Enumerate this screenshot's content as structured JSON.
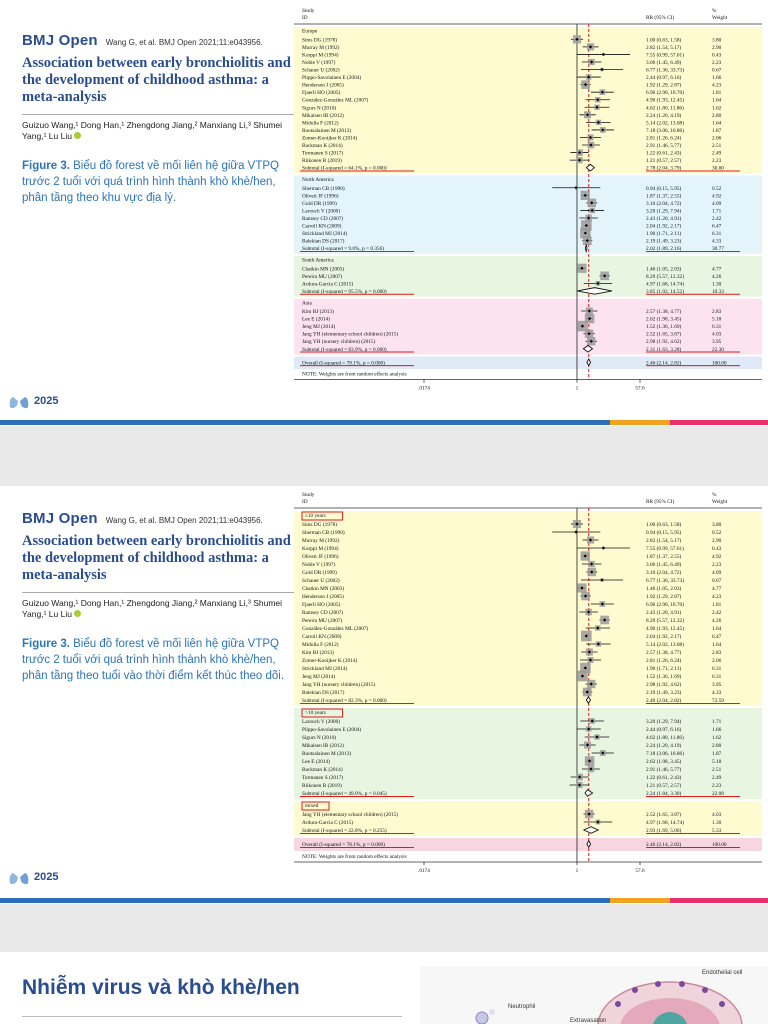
{
  "colors": {
    "brand": "#2a4d8f",
    "caption": "#2b74b9",
    "europe": "#fffbd0",
    "north_america": "#e3f5fb",
    "south_america": "#e8f6e1",
    "asia": "#fde3f0",
    "overall": "#dfe9f7",
    "mixed": "#fffbd0",
    "le10": "#fffbd0",
    "gt10": "#e8f6e1",
    "overall2": "#f8d6df",
    "red": "#d91c1c"
  },
  "slide1": {
    "journal": "BMJ Open",
    "citation": "Wang G, et al. BMJ Open 2021;11:e043956.",
    "paper_title": "Association between early bronchiolitis and the development of childhood asthma: a meta-analysis",
    "authors": "Guizuo Wang,¹ Dong Han,¹ Zhengdong Jiang,² Manxiang Li,³ Shumei Yang,¹ Lu Liu",
    "figure_label": "Figure 3.",
    "figure_caption": "Biểu đồ forest về mối liên hệ giữa VTPQ trước 2 tuổi với quá trình hình thành khò khè/hen, phân tầng theo khu vực địa lý.",
    "logo_year": "2025"
  },
  "slide2": {
    "journal": "BMJ Open",
    "citation": "Wang G, et al. BMJ Open 2021;11:e043956.",
    "paper_title": "Association between early bronchiolitis and the development of childhood asthma: a meta-analysis",
    "authors": "Guizuo Wang,¹ Dong Han,¹ Zhengdong Jiang,² Manxiang Li,³ Shumei Yang,¹ Lu Liu",
    "figure_label": "Figure 3.",
    "figure_caption": "Biểu đồ forest về mối liên hệ giữa VTPQ trước 2 tuổi với quá trình hình thành khò khè/hen, phân tầng theo tuổi vào thời điểm kết thúc theo dõi.",
    "logo_year": "2025"
  },
  "slide3": {
    "heading": "Nhiễm virus và khò khè/hen",
    "label_endothelial": "Endothelial cell",
    "label_neutrophil": "Neutrophil",
    "label_extravasation": "Extravasation"
  },
  "chart_data": [
    {
      "type": "forest",
      "header": {
        "study": "Study",
        "id": "ID",
        "rr": "RR (95% CI)",
        "pct": "%",
        "weight": "Weight"
      },
      "xaxis_ticks": [
        ".0174",
        "1",
        "57.6"
      ],
      "x_range": [
        0.0174,
        57.6
      ],
      "note": "NOTE: Weights are from random effects analysis",
      "groups": [
        {
          "name": "Europe",
          "rows": [
            {
              "study": "Sims DG (1978)",
              "rr": 1.0,
              "lo": 0.63,
              "hi": 1.58,
              "ci": "1.00 (0.63, 1.58)",
              "w": "3.80"
            },
            {
              "study": "Murray M (1992)",
              "rr": 2.82,
              "lo": 1.54,
              "hi": 5.17,
              "ci": "2.82 (1.54, 5.17)",
              "w": "2.90"
            },
            {
              "study": "Korppi M (1994)",
              "rr": 7.55,
              "lo": 0.99,
              "hi": 57.61,
              "ci": "7.55 (0.99, 57.61)",
              "w": "0.43"
            },
            {
              "study": "Noble V (1997)",
              "rr": 3.06,
              "lo": 1.45,
              "hi": 6.49,
              "ci": "3.06 (1.45, 6.49)",
              "w": "2.23"
            },
            {
              "study": "Schauer U (2002)",
              "rr": 6.77,
              "lo": 1.36,
              "hi": 33.73,
              "ci": "6.77 (1.36, 33.73)",
              "w": "0.67"
            },
            {
              "study": "Piippo-Savolainen E (2004)",
              "rr": 2.44,
              "lo": 0.97,
              "hi": 6.16,
              "ci": "2.44 (0.97, 6.16)",
              "w": "1.66"
            },
            {
              "study": "Henderson J (2005)",
              "rr": 1.92,
              "lo": 1.29,
              "hi": 2.87,
              "ci": "1.92 (1.29, 2.87)",
              "w": "4.23"
            },
            {
              "study": "Fjaerli HO (2005)",
              "rr": 6.96,
              "lo": 2.9,
              "hi": 16.7,
              "ci": "6.96 (2.90, 16.70)",
              "w": "1.81"
            },
            {
              "study": "González-González ML (2007)",
              "rr": 4.9,
              "lo": 1.93,
              "hi": 12.45,
              "ci": "4.90 (1.93, 12.45)",
              "w": "1.64"
            },
            {
              "study": "Sigurs N (2010)",
              "rr": 4.62,
              "lo": 1.8,
              "hi": 11.86,
              "ci": "4.62 (1.80, 11.86)",
              "w": "1.62"
            },
            {
              "study": "Mikalsen IB (2012)",
              "rr": 2.24,
              "lo": 1.2,
              "hi": 4.19,
              "ci": "2.24 (1.20, 4.19)",
              "w": "2.80"
            },
            {
              "study": "Midulla F (2012)",
              "rr": 5.14,
              "lo": 2.02,
              "hi": 13.08,
              "ci": "5.14 (2.02, 13.08)",
              "w": "1.64"
            },
            {
              "study": "Ruotsalainen M (2013)",
              "rr": 7.18,
              "lo": 3.06,
              "hi": 16.86,
              "ci": "7.18 (3.06, 16.86)",
              "w": "1.87"
            },
            {
              "study": "Zomer-Kooijker K (2014)",
              "rr": 2.81,
              "lo": 1.26,
              "hi": 6.24,
              "ci": "2.81 (1.26, 6.24)",
              "w": "2.06"
            },
            {
              "study": "Backman K (2014)",
              "rr": 2.91,
              "lo": 1.46,
              "hi": 5.77,
              "ci": "2.91 (1.46, 5.77)",
              "w": "2.51"
            },
            {
              "study": "Tormanen S (2017)",
              "rr": 1.22,
              "lo": 0.61,
              "hi": 2.43,
              "ci": "1.22 (0.61, 2.43)",
              "w": "2.49"
            },
            {
              "study": "Riikonen R (2019)",
              "rr": 1.21,
              "lo": 0.57,
              "hi": 2.57,
              "ci": "1.21 (0.57, 2.57)",
              "w": "2.23"
            }
          ],
          "subtotal": {
            "label": "Subtotal  (I-squared = 64.1%, p = 0.000)",
            "rr": 2.78,
            "lo": 2.04,
            "hi": 3.79,
            "ci": "2.78 (2.04, 3.79)",
            "w": "36.60"
          }
        },
        {
          "name": "North America",
          "rows": [
            {
              "study": "Sherman CB (1990)",
              "rr": 0.94,
              "lo": 0.15,
              "hi": 5.95,
              "ci": "0.94 (0.15, 5.95)",
              "w": "0.52"
            },
            {
              "study": "Oliveti JF (1996)",
              "rr": 1.87,
              "lo": 1.37,
              "hi": 2.55,
              "ci": "1.87 (1.37, 2.55)",
              "w": "4.92"
            },
            {
              "study": "Gold DR (1999)",
              "rr": 3.1,
              "lo": 2.04,
              "hi": 4.72,
              "ci": "3.10 (2.04, 4.72)",
              "w": "4.09"
            },
            {
              "study": "Larouch V (2000)",
              "rr": 3.2,
              "lo": 1.29,
              "hi": 7.94,
              "ci": "3.20 (1.29, 7.94)",
              "w": "1.71"
            },
            {
              "study": "Ramsey CD (2007)",
              "rr": 2.43,
              "lo": 1.2,
              "hi": 4.91,
              "ci": "2.43 (1.20, 4.91)",
              "w": "2.42"
            },
            {
              "study": "Carroll KN (2009)",
              "rr": 2.04,
              "lo": 1.92,
              "hi": 2.17,
              "ci": "2.04 (1.92, 2.17)",
              "w": "6.47"
            },
            {
              "study": "Strickland MJ (2014)",
              "rr": 1.9,
              "lo": 1.71,
              "hi": 2.11,
              "ci": "1.90 (1.71, 2.11)",
              "w": "6.31"
            },
            {
              "study": "Balekian DS (2017)",
              "rr": 2.19,
              "lo": 1.49,
              "hi": 3.23,
              "ci": "2.19 (1.49, 3.23)",
              "w": "4.33"
            }
          ],
          "subtotal": {
            "label": "Subtotal  (I-squared = 9.6%, p = 0.356)",
            "rr": 2.02,
            "lo": 1.89,
            "hi": 2.16,
            "ci": "2.02 (1.89, 2.16)",
            "w": "30.77"
          }
        },
        {
          "name": "South America",
          "rows": [
            {
              "study": "Chatkin MN (2003)",
              "rr": 1.46,
              "lo": 1.05,
              "hi": 2.03,
              "ci": "1.46 (1.05, 2.03)",
              "w": "4.77"
            },
            {
              "study": "Pereira MU (2007)",
              "rr": 8.29,
              "lo": 5.57,
              "hi": 12.32,
              "ci": "8.29 (5.57, 12.32)",
              "w": "4.26"
            },
            {
              "study": "Ardura-Garcia C (2015)",
              "rr": 4.97,
              "lo": 1.68,
              "hi": 14.74,
              "ci": "4.97 (1.68, 14.74)",
              "w": "1.30"
            }
          ],
          "subtotal": {
            "label": "Subtotal  (I-squared = 95.5%, p = 0.000)",
            "rr": 3.85,
            "lo": 1.02,
            "hi": 14.52,
            "ci": "3.85 (1.02, 14.52)",
            "w": "10.33"
          }
        },
        {
          "name": "Asia",
          "rows": [
            {
              "study": "Kim BJ (2013)",
              "rr": 2.57,
              "lo": 1.38,
              "hi": 4.77,
              "ci": "2.57 (1.38, 4.77)",
              "w": "2.83"
            },
            {
              "study": "Lee E (2014)",
              "rr": 2.62,
              "lo": 1.98,
              "hi": 3.45,
              "ci": "2.62 (1.98, 3.45)",
              "w": "5.18"
            },
            {
              "study": "Jeng MJ (2014)",
              "rr": 1.52,
              "lo": 1.36,
              "hi": 1.69,
              "ci": "1.52 (1.36, 1.69)",
              "w": "6.31"
            },
            {
              "study": "Jang YH (elementary school children) (2015)",
              "rr": 2.52,
              "lo": 1.65,
              "hi": 3.87,
              "ci": "2.52 (1.65, 3.87)",
              "w": "4.03"
            },
            {
              "study": "Jang YH (nursery children) (2015)",
              "rr": 2.98,
              "lo": 1.92,
              "hi": 4.62,
              "ci": "2.98 (1.92, 4.62)",
              "w": "3.95"
            }
          ],
          "subtotal": {
            "label": "Subtotal  (I-squared = 83.9%, p = 0.000)",
            "rr": 2.31,
            "lo": 1.63,
            "hi": 3.28,
            "ci": "2.31 (1.63, 3.28)",
            "w": "22.30"
          }
        }
      ],
      "overall": {
        "label": "Overall  (I-squared = 78.1%, p = 0.000)",
        "rr": 2.46,
        "lo": 2.14,
        "hi": 2.82,
        "ci": "2.46 (2.14, 2.82)",
        "w": "100.00"
      }
    },
    {
      "type": "forest",
      "header": {
        "study": "Study",
        "id": "ID",
        "rr": "RR (95% CI)",
        "pct": "%",
        "weight": "Weight"
      },
      "xaxis_ticks": [
        ".0174",
        "1",
        "57.6"
      ],
      "x_range": [
        0.0174,
        57.6
      ],
      "note": "NOTE: Weights are from random effects analysis",
      "groups": [
        {
          "name": "≤10 years",
          "rows": [
            {
              "study": "Sims DG (1978)",
              "rr": 1.0,
              "lo": 0.63,
              "hi": 1.58,
              "ci": "1.00 (0.63, 1.58)",
              "w": "3.80"
            },
            {
              "study": "Sherman CB (1990)",
              "rr": 0.94,
              "lo": 0.15,
              "hi": 5.95,
              "ci": "0.94 (0.15, 5.95)",
              "w": "0.52"
            },
            {
              "study": "Murray M (1992)",
              "rr": 2.82,
              "lo": 1.54,
              "hi": 5.17,
              "ci": "2.82 (1.54, 5.17)",
              "w": "2.90"
            },
            {
              "study": "Korppi M (1994)",
              "rr": 7.55,
              "lo": 0.99,
              "hi": 57.61,
              "ci": "7.55 (0.99, 57.61)",
              "w": "0.43"
            },
            {
              "study": "Oliveti JF (1996)",
              "rr": 1.87,
              "lo": 1.37,
              "hi": 2.55,
              "ci": "1.87 (1.37, 2.55)",
              "w": "4.92"
            },
            {
              "study": "Noble V (1997)",
              "rr": 3.06,
              "lo": 1.45,
              "hi": 6.49,
              "ci": "3.06 (1.45, 6.49)",
              "w": "2.23"
            },
            {
              "study": "Gold DR (1999)",
              "rr": 3.1,
              "lo": 2.04,
              "hi": 4.72,
              "ci": "3.10 (2.04, 4.72)",
              "w": "4.09"
            },
            {
              "study": "Schauer U (2002)",
              "rr": 6.77,
              "lo": 1.36,
              "hi": 33.73,
              "ci": "6.77 (1.36, 33.73)",
              "w": "0.67"
            },
            {
              "study": "Chatkin MN (2003)",
              "rr": 1.46,
              "lo": 1.05,
              "hi": 2.03,
              "ci": "1.46 (1.05, 2.03)",
              "w": "4.77"
            },
            {
              "study": "Henderson J (2005)",
              "rr": 1.92,
              "lo": 1.29,
              "hi": 2.87,
              "ci": "1.92 (1.29, 2.87)",
              "w": "4.23"
            },
            {
              "study": "Fjaerli HO (2005)",
              "rr": 6.96,
              "lo": 2.9,
              "hi": 16.7,
              "ci": "6.96 (2.90, 16.70)",
              "w": "1.81"
            },
            {
              "study": "Ramsey CD (2007)",
              "rr": 2.43,
              "lo": 1.2,
              "hi": 4.91,
              "ci": "2.43 (1.20, 4.91)",
              "w": "2.42"
            },
            {
              "study": "Pereira MU (2007)",
              "rr": 8.29,
              "lo": 5.57,
              "hi": 12.32,
              "ci": "8.29 (5.57, 12.32)",
              "w": "4.26"
            },
            {
              "study": "González-González ML (2007)",
              "rr": 4.9,
              "lo": 1.93,
              "hi": 12.45,
              "ci": "4.90 (1.93, 12.45)",
              "w": "1.64"
            },
            {
              "study": "Carroll KN (2009)",
              "rr": 2.04,
              "lo": 1.92,
              "hi": 2.17,
              "ci": "2.04 (1.92, 2.17)",
              "w": "6.47"
            },
            {
              "study": "Midulla F (2012)",
              "rr": 5.14,
              "lo": 2.02,
              "hi": 13.08,
              "ci": "5.14 (2.02, 13.08)",
              "w": "1.64"
            },
            {
              "study": "Kim BJ (2013)",
              "rr": 2.57,
              "lo": 1.38,
              "hi": 4.77,
              "ci": "2.57 (1.38, 4.77)",
              "w": "2.83"
            },
            {
              "study": "Zomer-Kooijker K (2014)",
              "rr": 2.81,
              "lo": 1.26,
              "hi": 6.24,
              "ci": "2.81 (1.26, 6.24)",
              "w": "2.06"
            },
            {
              "study": "Strickland MJ (2014)",
              "rr": 1.9,
              "lo": 1.71,
              "hi": 2.11,
              "ci": "1.90 (1.71, 2.11)",
              "w": "6.31"
            },
            {
              "study": "Jeng MJ (2014)",
              "rr": 1.52,
              "lo": 1.36,
              "hi": 1.69,
              "ci": "1.52 (1.36, 1.69)",
              "w": "6.31"
            },
            {
              "study": "Jang YH (nursery children) (2015)",
              "rr": 2.98,
              "lo": 1.92,
              "hi": 4.62,
              "ci": "2.98 (1.92, 4.62)",
              "w": "3.95"
            },
            {
              "study": "Balekian DS (2017)",
              "rr": 2.19,
              "lo": 1.49,
              "hi": 3.23,
              "ci": "2.19 (1.49, 3.23)",
              "w": "4.33"
            }
          ],
          "subtotal": {
            "label": "Subtotal  (I-squared = 82.3%, p = 0.000)",
            "rr": 2.4,
            "lo": 2.04,
            "hi": 2.82,
            "ci": "2.40 (2.04, 2.82)",
            "w": "72.59"
          }
        },
        {
          "name": ">10 years",
          "rows": [
            {
              "study": "Larouch V (2000)",
              "rr": 3.2,
              "lo": 1.29,
              "hi": 7.94,
              "ci": "3.20 (1.29, 7.94)",
              "w": "1.71"
            },
            {
              "study": "Piippo-Savolainen E (2004)",
              "rr": 2.44,
              "lo": 0.97,
              "hi": 6.16,
              "ci": "2.44 (0.97, 6.16)",
              "w": "1.66"
            },
            {
              "study": "Sigurs N (2010)",
              "rr": 4.62,
              "lo": 1.8,
              "hi": 11.86,
              "ci": "4.62 (1.80, 11.86)",
              "w": "1.62"
            },
            {
              "study": "Mikalsen IB (2012)",
              "rr": 2.24,
              "lo": 1.2,
              "hi": 4.19,
              "ci": "2.24 (1.20, 4.19)",
              "w": "2.80"
            },
            {
              "study": "Ruotsalainen M (2013)",
              "rr": 7.18,
              "lo": 3.06,
              "hi": 16.86,
              "ci": "7.18 (3.06, 16.86)",
              "w": "1.87"
            },
            {
              "study": "Lee E (2014)",
              "rr": 2.62,
              "lo": 1.98,
              "hi": 3.45,
              "ci": "2.62 (1.98, 3.45)",
              "w": "5.18"
            },
            {
              "study": "Backman K (2014)",
              "rr": 2.91,
              "lo": 1.46,
              "hi": 5.77,
              "ci": "2.91 (1.46, 5.77)",
              "w": "2.51"
            },
            {
              "study": "Tormanen S (2017)",
              "rr": 1.22,
              "lo": 0.61,
              "hi": 2.43,
              "ci": "1.22 (0.61, 2.43)",
              "w": "2.49"
            },
            {
              "study": "Riikonen R (2019)",
              "rr": 1.21,
              "lo": 0.57,
              "hi": 2.57,
              "ci": "1.21 (0.57, 2.57)",
              "w": "2.23"
            }
          ],
          "subtotal": {
            "label": "Subtotal  (I-squared = 49.0%, p = 0.045)",
            "rr": 2.24,
            "lo": 1.84,
            "hi": 3.3,
            "ci": "2.24 (1.84, 3.30)",
            "w": "22.08"
          }
        },
        {
          "name": "mixed",
          "rows": [
            {
              "study": "Jang YH (elementary school children) (2015)",
              "rr": 2.52,
              "lo": 1.65,
              "hi": 3.87,
              "ci": "2.52 (1.65, 3.87)",
              "w": "4.03"
            },
            {
              "study": "Ardura-Garcia C (2015)",
              "rr": 4.97,
              "lo": 1.68,
              "hi": 14.74,
              "ci": "4.97 (1.68, 14.74)",
              "w": "1.30"
            }
          ],
          "subtotal": {
            "label": "Subtotal  (I-squared = 22.8%, p = 0.255)",
            "rr": 2.93,
            "lo": 1.69,
            "hi": 5.06,
            "ci": "2.93 (1.69, 5.06)",
            "w": "5.33"
          }
        }
      ],
      "overall": {
        "label": "Overall  (I-squared = 78.1%, p = 0.000)",
        "rr": 2.46,
        "lo": 2.14,
        "hi": 2.82,
        "ci": "2.46 (2.14, 2.82)",
        "w": "100.00"
      }
    }
  ]
}
